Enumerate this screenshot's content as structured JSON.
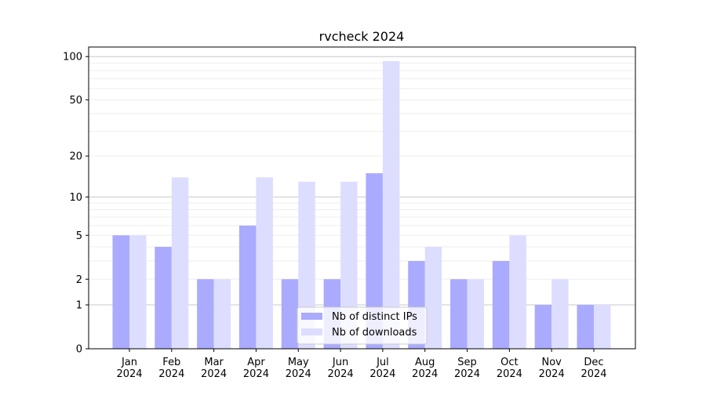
{
  "chart_data": {
    "type": "bar",
    "title": "rvcheck 2024",
    "xlabel": "",
    "ylabel": "",
    "yscale": "symlog",
    "ylim": [
      0,
      110
    ],
    "yticks": [
      0,
      1,
      2,
      5,
      10,
      20,
      50,
      100
    ],
    "categories": [
      "Jan\n2024",
      "Feb\n2024",
      "Mar\n2024",
      "Apr\n2024",
      "May\n2024",
      "Jun\n2024",
      "Jul\n2024",
      "Aug\n2024",
      "Sep\n2024",
      "Oct\n2024",
      "Nov\n2024",
      "Dec\n2024"
    ],
    "series": [
      {
        "name": "Nb of distinct IPs",
        "color": "#aaaaff",
        "values": [
          5,
          4,
          2,
          6,
          2,
          2,
          15,
          3,
          2,
          3,
          1,
          1
        ]
      },
      {
        "name": "Nb of downloads",
        "color": "#ddddff",
        "values": [
          5,
          14,
          2,
          14,
          13,
          13,
          93,
          4,
          2,
          5,
          2,
          1
        ]
      }
    ],
    "grid": true,
    "legend": "bottom-center"
  }
}
